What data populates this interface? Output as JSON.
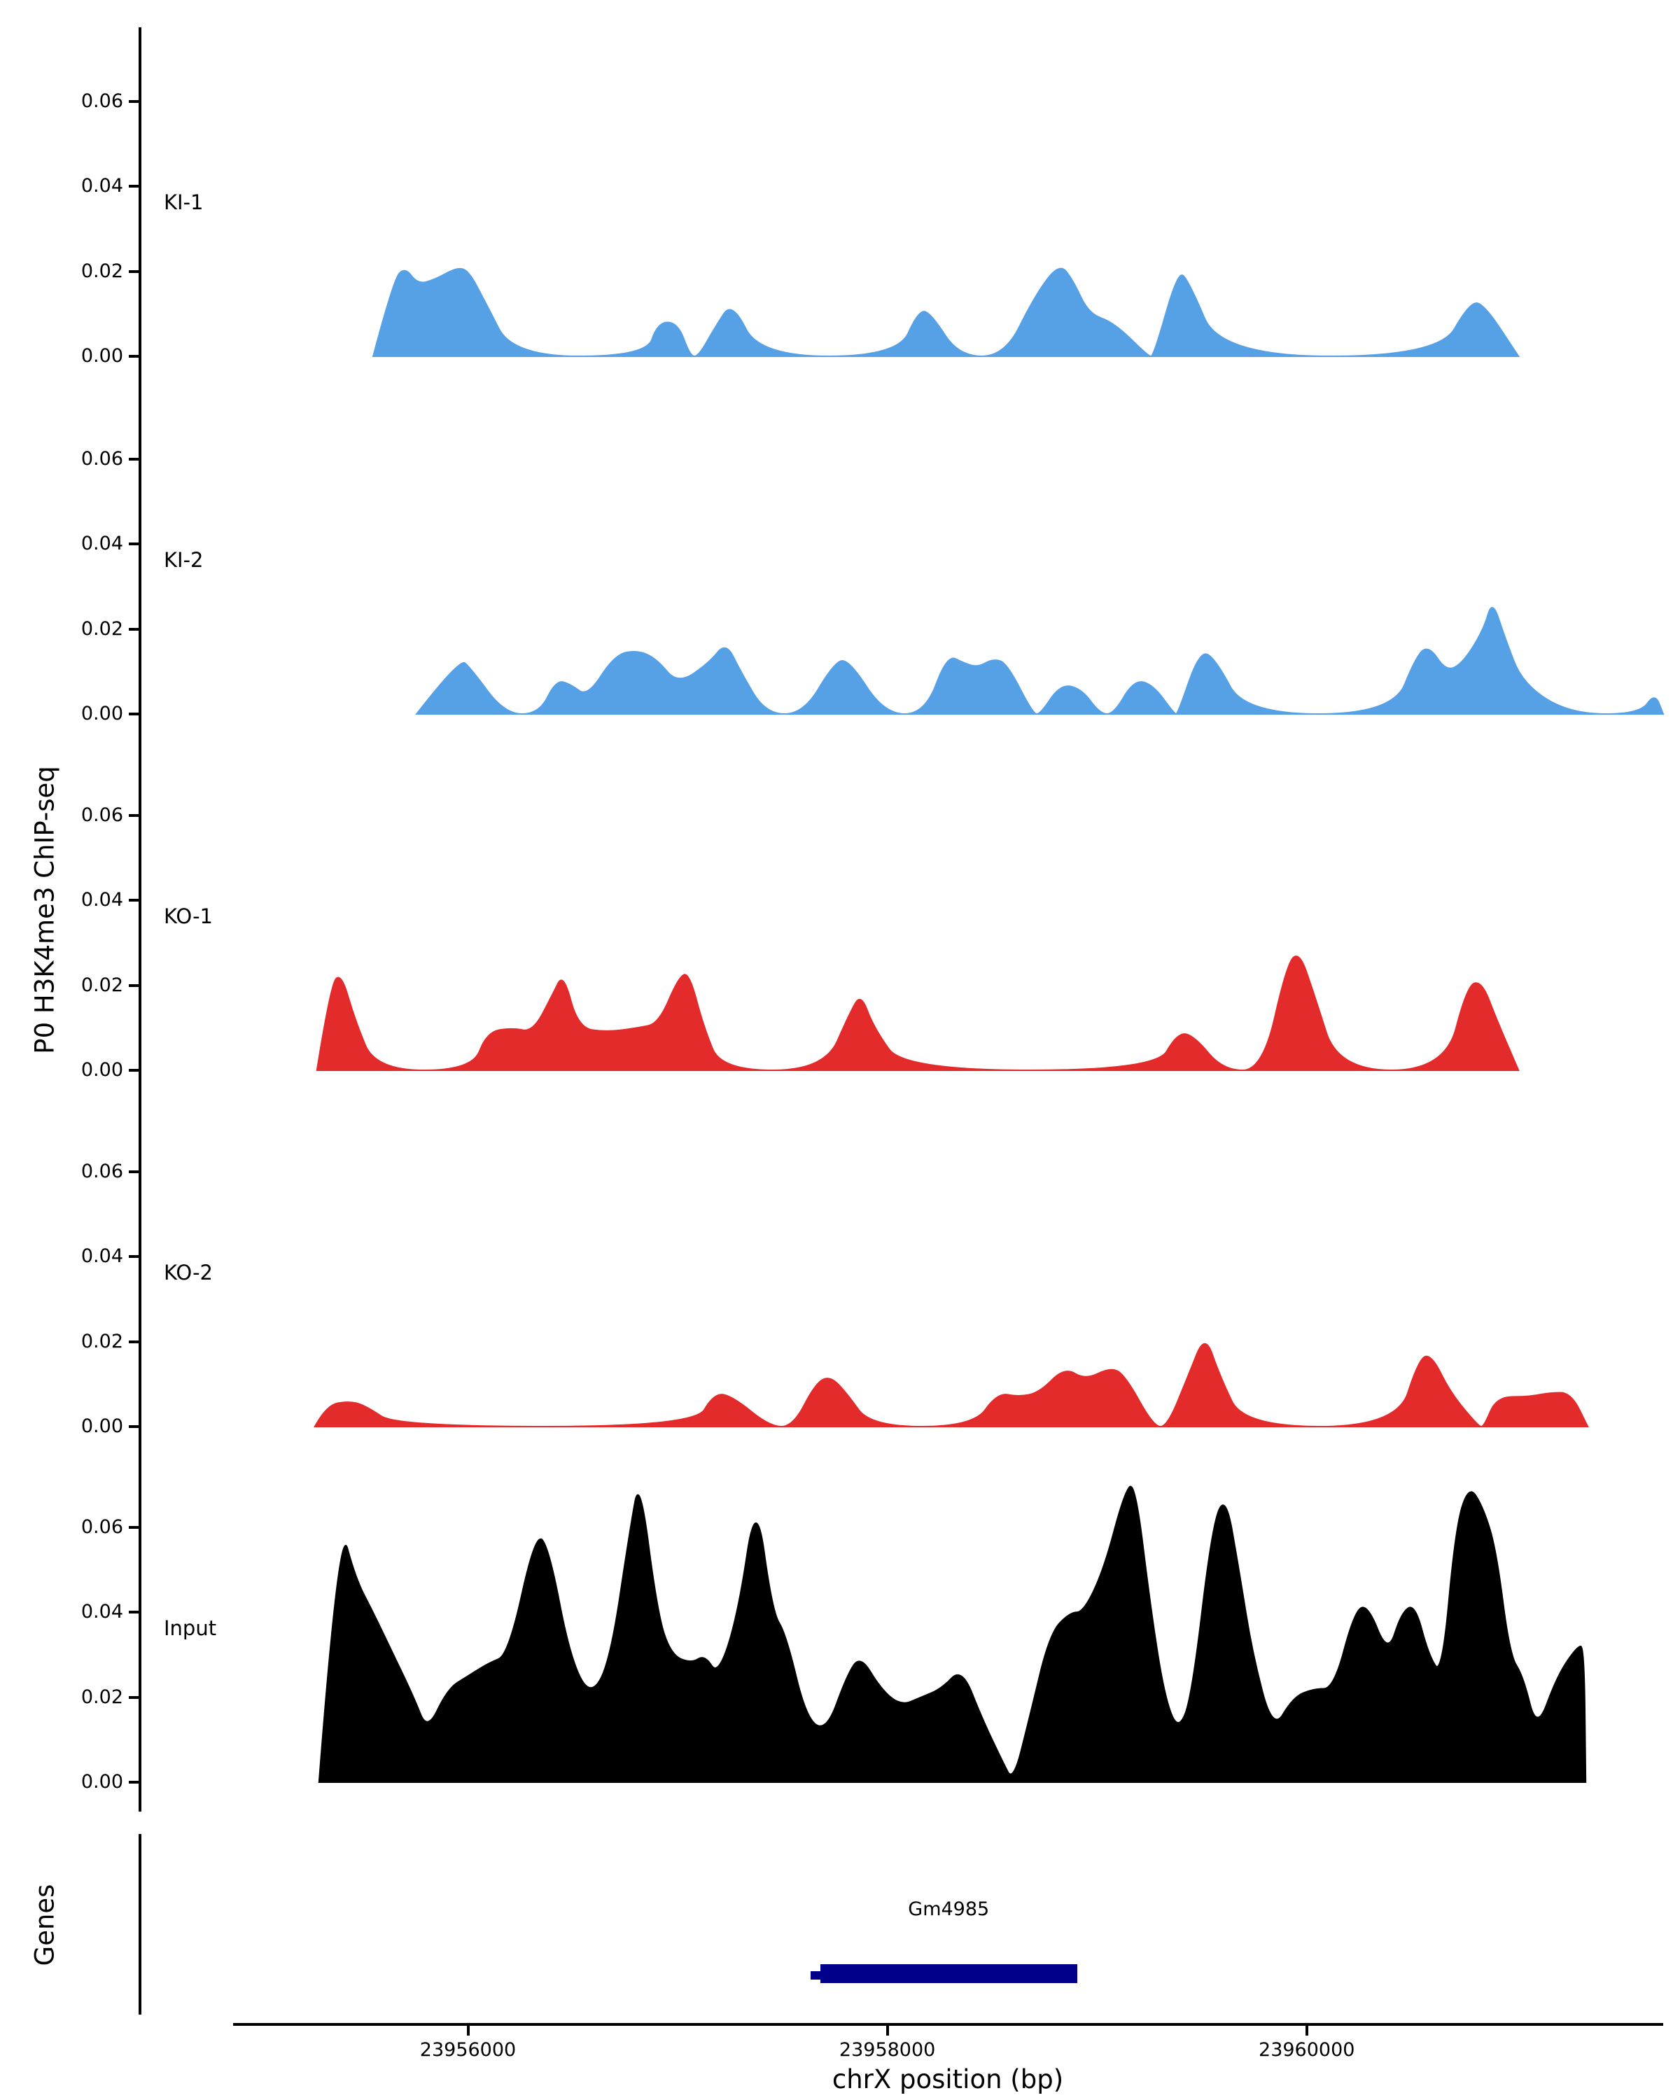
{
  "figure": {
    "y_axis_label": "P0 H3K4me3 ChIP-seq",
    "genes_axis_label": "Genes",
    "x_axis_label": "chrX position (bp)"
  },
  "axis": {
    "y_ticks": [
      "0.06",
      "0.04",
      "0.02",
      "0.00"
    ],
    "x_ticks": [
      {
        "label": "23956000",
        "bp": 23956000
      },
      {
        "label": "23958000",
        "bp": 23958000
      },
      {
        "label": "23960000",
        "bp": 23960000
      }
    ]
  },
  "chart_data": {
    "type": "area",
    "title": "",
    "xlabel": "chrX position (bp)",
    "ylabel": "P0 H3K4me3 ChIP-seq",
    "x_domain": [
      23954880,
      23961700
    ],
    "y_tick_values": [
      0,
      0.02,
      0.04,
      0.06
    ],
    "ylim": [
      0,
      0.0775
    ],
    "tracks": [
      {
        "name": "KI-1",
        "color": "#56A0E6",
        "points": [
          [
            23955548,
            0
          ],
          [
            23955645,
            0.018
          ],
          [
            23955700,
            0.021
          ],
          [
            23955760,
            0.017
          ],
          [
            23955840,
            0.018
          ],
          [
            23955950,
            0.021
          ],
          [
            23956005,
            0.02
          ],
          [
            23956080,
            0.013
          ],
          [
            23956215,
            0
          ],
          [
            23956850,
            0
          ],
          [
            23956905,
            0.008
          ],
          [
            23957000,
            0.008
          ],
          [
            23957060,
            0
          ],
          [
            23957100,
            0
          ],
          [
            23957180,
            0.007
          ],
          [
            23957260,
            0.013
          ],
          [
            23957390,
            0
          ],
          [
            23958050,
            0
          ],
          [
            23958150,
            0.011
          ],
          [
            23958210,
            0.01
          ],
          [
            23958340,
            0
          ],
          [
            23958560,
            0
          ],
          [
            23958700,
            0.014
          ],
          [
            23958820,
            0.022
          ],
          [
            23958885,
            0.018
          ],
          [
            23958960,
            0.01
          ],
          [
            23959080,
            0.008
          ],
          [
            23959245,
            0
          ],
          [
            23959270,
            0
          ],
          [
            23959385,
            0.02
          ],
          [
            23959435,
            0.018
          ],
          [
            23959590,
            0
          ],
          [
            23960630,
            0
          ],
          [
            23960780,
            0.013
          ],
          [
            23960850,
            0.012
          ],
          [
            23961010,
            0
          ]
        ]
      },
      {
        "name": "KI-2",
        "color": "#56A0E6",
        "points": [
          [
            23955755,
            0
          ],
          [
            23955960,
            0.013
          ],
          [
            23956010,
            0.011
          ],
          [
            23956175,
            0
          ],
          [
            23956340,
            0
          ],
          [
            23956420,
            0.008
          ],
          [
            23956490,
            0.007
          ],
          [
            23956570,
            0.004
          ],
          [
            23956700,
            0.014
          ],
          [
            23956810,
            0.015
          ],
          [
            23956900,
            0.013
          ],
          [
            23957000,
            0.007
          ],
          [
            23957150,
            0.012
          ],
          [
            23957230,
            0.017
          ],
          [
            23957300,
            0.01
          ],
          [
            23957420,
            0
          ],
          [
            23957600,
            0
          ],
          [
            23957745,
            0.012
          ],
          [
            23957815,
            0.013
          ],
          [
            23957985,
            0
          ],
          [
            23958180,
            0
          ],
          [
            23958285,
            0.014
          ],
          [
            23958365,
            0.012
          ],
          [
            23958430,
            0.011
          ],
          [
            23958505,
            0.013
          ],
          [
            23958570,
            0.012
          ],
          [
            23958695,
            0
          ],
          [
            23958730,
            0
          ],
          [
            23958825,
            0.007
          ],
          [
            23958925,
            0.006
          ],
          [
            23959015,
            0
          ],
          [
            23959080,
            0
          ],
          [
            23959175,
            0.008
          ],
          [
            23959265,
            0.007
          ],
          [
            23959370,
            0
          ],
          [
            23959385,
            0
          ],
          [
            23959490,
            0.015
          ],
          [
            23959565,
            0.013
          ],
          [
            23959705,
            0
          ],
          [
            23960410,
            0
          ],
          [
            23960525,
            0.014
          ],
          [
            23960585,
            0.016
          ],
          [
            23960665,
            0.01
          ],
          [
            23960745,
            0.012
          ],
          [
            23960845,
            0.02
          ],
          [
            23960885,
            0.027
          ],
          [
            23960945,
            0.018
          ],
          [
            23961030,
            0.007
          ],
          [
            23961260,
            0
          ],
          [
            23961590,
            0
          ],
          [
            23961660,
            0.005
          ],
          [
            23961700,
            0
          ]
        ]
      },
      {
        "name": "KO-1",
        "color": "#E32B2B",
        "points": [
          [
            23955280,
            0
          ],
          [
            23955345,
            0.02
          ],
          [
            23955395,
            0.023
          ],
          [
            23955460,
            0.012
          ],
          [
            23955560,
            0
          ],
          [
            23956020,
            0
          ],
          [
            23956090,
            0.009
          ],
          [
            23956210,
            0.01
          ],
          [
            23956310,
            0.009
          ],
          [
            23956405,
            0.018
          ],
          [
            23956455,
            0.023
          ],
          [
            23956525,
            0.01
          ],
          [
            23956660,
            0.009
          ],
          [
            23956810,
            0.01
          ],
          [
            23956910,
            0.011
          ],
          [
            23957005,
            0.022
          ],
          [
            23957055,
            0.023
          ],
          [
            23957125,
            0.01
          ],
          [
            23957210,
            0
          ],
          [
            23957700,
            0
          ],
          [
            23957825,
            0.014
          ],
          [
            23957875,
            0.018
          ],
          [
            23957935,
            0.01
          ],
          [
            23958080,
            0
          ],
          [
            23959280,
            0
          ],
          [
            23959385,
            0.009
          ],
          [
            23959465,
            0.008
          ],
          [
            23959600,
            0
          ],
          [
            23959790,
            0
          ],
          [
            23959905,
            0.025
          ],
          [
            23959965,
            0.028
          ],
          [
            23960035,
            0.018
          ],
          [
            23960150,
            0
          ],
          [
            23960660,
            0
          ],
          [
            23960765,
            0.02
          ],
          [
            23960835,
            0.021
          ],
          [
            23960905,
            0.012
          ],
          [
            23961010,
            0
          ]
        ]
      },
      {
        "name": "KO-2",
        "color": "#E32B2B",
        "points": [
          [
            23955270,
            0
          ],
          [
            23955325,
            0.005
          ],
          [
            23955430,
            0.006
          ],
          [
            23955510,
            0.005
          ],
          [
            23955660,
            0
          ],
          [
            23957080,
            0
          ],
          [
            23957175,
            0.008
          ],
          [
            23957265,
            0.007
          ],
          [
            23957440,
            0
          ],
          [
            23957550,
            0
          ],
          [
            23957655,
            0.01
          ],
          [
            23957725,
            0.012
          ],
          [
            23957805,
            0.008
          ],
          [
            23957920,
            0
          ],
          [
            23958410,
            0
          ],
          [
            23958525,
            0.008
          ],
          [
            23958625,
            0.007
          ],
          [
            23958725,
            0.008
          ],
          [
            23958845,
            0.014
          ],
          [
            23958945,
            0.011
          ],
          [
            23959065,
            0.014
          ],
          [
            23959135,
            0.012
          ],
          [
            23959270,
            0
          ],
          [
            23959335,
            0
          ],
          [
            23959435,
            0.012
          ],
          [
            23959515,
            0.022
          ],
          [
            23959585,
            0.012
          ],
          [
            23959700,
            0
          ],
          [
            23960430,
            0
          ],
          [
            23960535,
            0.016
          ],
          [
            23960595,
            0.017
          ],
          [
            23960685,
            0.008
          ],
          [
            23960820,
            0
          ],
          [
            23960845,
            0
          ],
          [
            23960905,
            0.007
          ],
          [
            23961055,
            0.007
          ],
          [
            23961160,
            0.008
          ],
          [
            23961260,
            0.008
          ],
          [
            23961340,
            0
          ]
        ]
      },
      {
        "name": "Input",
        "color": "#000000",
        "points": [
          [
            23955290,
            0
          ],
          [
            23955387,
            0.062
          ],
          [
            23955464,
            0.048
          ],
          [
            23955548,
            0.04
          ],
          [
            23955645,
            0.03
          ],
          [
            23955742,
            0.02
          ],
          [
            23955806,
            0.012
          ],
          [
            23955903,
            0.022
          ],
          [
            23956000,
            0.025
          ],
          [
            23956097,
            0.028
          ],
          [
            23956194,
            0.03
          ],
          [
            23956323,
            0.059
          ],
          [
            23956387,
            0.055
          ],
          [
            23956484,
            0.03
          ],
          [
            23956581,
            0.02
          ],
          [
            23956677,
            0.028
          ],
          [
            23956774,
            0.06
          ],
          [
            23956819,
            0.072
          ],
          [
            23956903,
            0.04
          ],
          [
            23956968,
            0.03
          ],
          [
            23957065,
            0.028
          ],
          [
            23957129,
            0.03
          ],
          [
            23957194,
            0.025
          ],
          [
            23957290,
            0.04
          ],
          [
            23957374,
            0.068
          ],
          [
            23957452,
            0.04
          ],
          [
            23957516,
            0.035
          ],
          [
            23957613,
            0.015
          ],
          [
            23957710,
            0.012
          ],
          [
            23957806,
            0.025
          ],
          [
            23957871,
            0.03
          ],
          [
            23957968,
            0.022
          ],
          [
            23958065,
            0.018
          ],
          [
            23958161,
            0.02
          ],
          [
            23958258,
            0.022
          ],
          [
            23958355,
            0.027
          ],
          [
            23958452,
            0.015
          ],
          [
            23958548,
            0.005
          ],
          [
            23958600,
            0
          ],
          [
            23958677,
            0.015
          ],
          [
            23958774,
            0.035
          ],
          [
            23958871,
            0.04
          ],
          [
            23958935,
            0.04
          ],
          [
            23959032,
            0.05
          ],
          [
            23959129,
            0.068
          ],
          [
            23959181,
            0.071
          ],
          [
            23959258,
            0.04
          ],
          [
            23959323,
            0.02
          ],
          [
            23959387,
            0.012
          ],
          [
            23959452,
            0.02
          ],
          [
            23959548,
            0.06
          ],
          [
            23959613,
            0.068
          ],
          [
            23959677,
            0.05
          ],
          [
            23959742,
            0.03
          ],
          [
            23959839,
            0.012
          ],
          [
            23959935,
            0.02
          ],
          [
            23960032,
            0.022
          ],
          [
            23960129,
            0.022
          ],
          [
            23960226,
            0.04
          ],
          [
            23960290,
            0.042
          ],
          [
            23960387,
            0.03
          ],
          [
            23960452,
            0.04
          ],
          [
            23960516,
            0.042
          ],
          [
            23960581,
            0.03
          ],
          [
            23960645,
            0.025
          ],
          [
            23960710,
            0.06
          ],
          [
            23960774,
            0.07
          ],
          [
            23960839,
            0.065
          ],
          [
            23960903,
            0.055
          ],
          [
            23960968,
            0.03
          ],
          [
            23961032,
            0.025
          ],
          [
            23961097,
            0.012
          ],
          [
            23961194,
            0.025
          ],
          [
            23961290,
            0.032
          ],
          [
            23961323,
            0.032
          ],
          [
            23961330,
            0
          ]
        ]
      }
    ],
    "gene": {
      "label": "Gm4985",
      "start": 23957680,
      "end": 23958905,
      "thin_start": 23957635,
      "color": "#00008B"
    }
  }
}
